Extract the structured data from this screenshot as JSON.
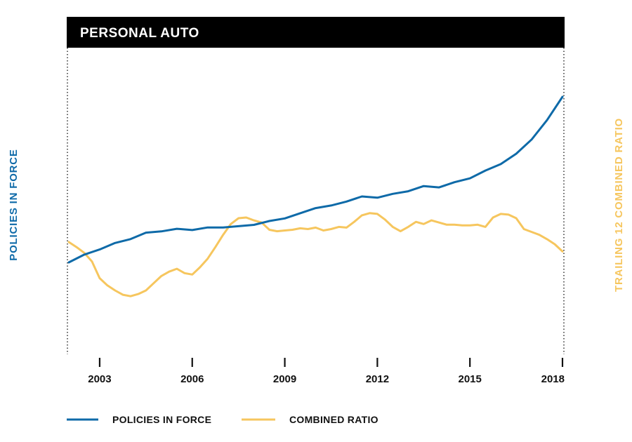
{
  "chart_data": {
    "type": "line",
    "title": "PERSONAL AUTO",
    "ylabel_left": "POLICIES IN FORCE",
    "ylabel_right": "TRAILING 12 COMBINED RATIO",
    "xlim": [
      2002,
      2018
    ],
    "x_ticks": [
      2003,
      2006,
      2009,
      2012,
      2015,
      2018
    ],
    "y_tick_labels_shown": false,
    "grid": false,
    "legend_position": "bottom-left",
    "colors": {
      "policies": "#0e6aa8",
      "combined_ratio": "#f6c65e",
      "title_bar": "#000000"
    },
    "series": [
      {
        "key": "policies",
        "name": "POLICIES IN FORCE",
        "axis": "left",
        "x": [
          2002.0,
          2002.5,
          2003.0,
          2003.5,
          2004.0,
          2004.5,
          2005.0,
          2005.5,
          2006.0,
          2006.5,
          2007.0,
          2007.5,
          2008.0,
          2008.5,
          2009.0,
          2009.5,
          2010.0,
          2010.5,
          2011.0,
          2011.5,
          2012.0,
          2012.5,
          2013.0,
          2013.5,
          2014.0,
          2014.5,
          2015.0,
          2015.5,
          2016.0,
          2016.5,
          2017.0,
          2017.5,
          2018.0
        ],
        "values": [
          25,
          31,
          35,
          40,
          43,
          48,
          49,
          51,
          50,
          52,
          52,
          53,
          54,
          57,
          59,
          63,
          67,
          69,
          72,
          76,
          75,
          78,
          80,
          84,
          83,
          87,
          90,
          96,
          101,
          109,
          120,
          135,
          153
        ]
      },
      {
        "key": "combined_ratio",
        "name": "COMBINED RATIO",
        "axis": "right",
        "x": [
          2002.0,
          2002.25,
          2002.5,
          2002.75,
          2003.0,
          2003.25,
          2003.5,
          2003.75,
          2004.0,
          2004.25,
          2004.5,
          2004.75,
          2005.0,
          2005.25,
          2005.5,
          2005.75,
          2006.0,
          2006.25,
          2006.5,
          2006.75,
          2007.0,
          2007.25,
          2007.5,
          2007.75,
          2008.0,
          2008.25,
          2008.5,
          2008.75,
          2009.0,
          2009.25,
          2009.5,
          2009.75,
          2010.0,
          2010.25,
          2010.5,
          2010.75,
          2011.0,
          2011.25,
          2011.5,
          2011.75,
          2012.0,
          2012.25,
          2012.5,
          2012.75,
          2013.0,
          2013.25,
          2013.5,
          2013.75,
          2014.0,
          2014.25,
          2014.5,
          2014.75,
          2015.0,
          2015.25,
          2015.5,
          2015.75,
          2016.0,
          2016.25,
          2016.5,
          2016.75,
          2017.0,
          2017.25,
          2017.5,
          2017.75,
          2018.0
        ],
        "values": [
          96.5,
          95.8,
          95.0,
          93.8,
          91.5,
          90.5,
          89.8,
          89.2,
          89.0,
          89.3,
          89.8,
          90.8,
          91.8,
          92.4,
          92.8,
          92.2,
          92.0,
          93.0,
          94.2,
          95.8,
          97.5,
          99.0,
          99.8,
          99.9,
          99.5,
          99.2,
          98.2,
          98.0,
          98.1,
          98.2,
          98.4,
          98.3,
          98.5,
          98.1,
          98.3,
          98.6,
          98.5,
          99.3,
          100.2,
          100.5,
          100.4,
          99.6,
          98.6,
          98.0,
          98.6,
          99.3,
          99.0,
          99.5,
          99.2,
          98.9,
          98.9,
          98.8,
          98.8,
          98.9,
          98.6,
          99.9,
          100.4,
          100.3,
          99.8,
          98.3,
          97.9,
          97.5,
          96.9,
          96.2,
          95.2
        ]
      }
    ],
    "legend": [
      {
        "key": "policies",
        "label": "POLICIES IN FORCE"
      },
      {
        "key": "combined_ratio",
        "label": "COMBINED RATIO"
      }
    ]
  }
}
